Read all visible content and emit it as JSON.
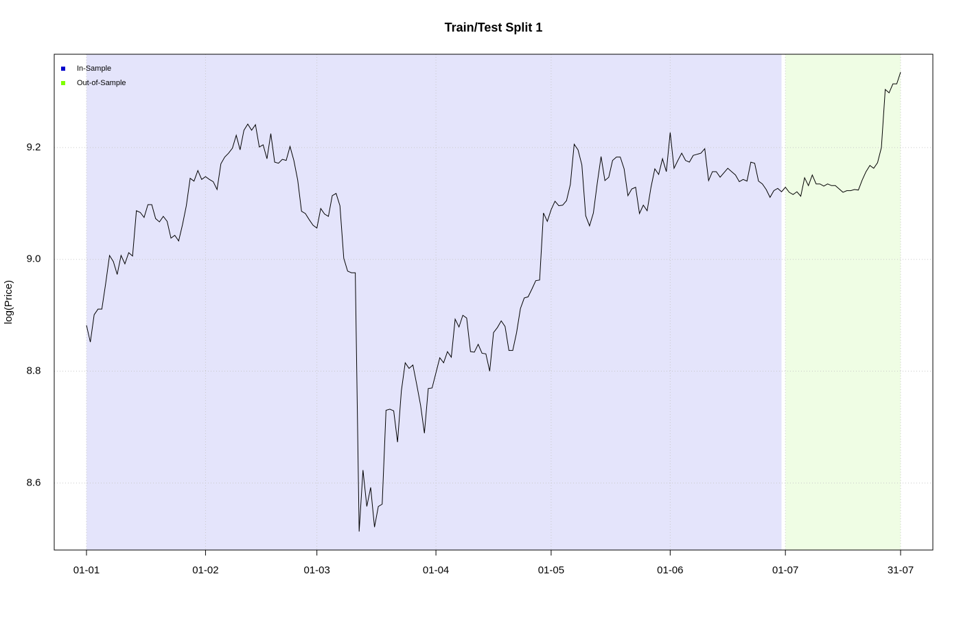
{
  "chart_data": {
    "type": "line",
    "title": "Train/Test Split 1",
    "y_label": "log(Price)",
    "xlim": [
      -8.4,
      220.4
    ],
    "ylim": [
      8.48,
      9.367
    ],
    "xticks": [
      {
        "value": 0,
        "label": "01-01"
      },
      {
        "value": 31,
        "label": "01-02"
      },
      {
        "value": 60,
        "label": "01-03"
      },
      {
        "value": 91,
        "label": "01-04"
      },
      {
        "value": 121,
        "label": "01-05"
      },
      {
        "value": 152,
        "label": "01-06"
      },
      {
        "value": 182,
        "label": "01-07"
      },
      {
        "value": 212,
        "label": "31-07"
      }
    ],
    "yticks": [
      8.6,
      8.8,
      {
        "value": 9,
        "label": "9.0"
      },
      9.2
    ],
    "grid": true,
    "legend": "top-left",
    "regions": [
      {
        "name": "In-Sample",
        "color": "#0000cc",
        "fill": "#e4e4fb",
        "range": [
          0,
          181
        ]
      },
      {
        "name": "Out-of-Sample",
        "color": "#7fff00",
        "fill": "#effde4",
        "range": [
          182,
          212
        ]
      }
    ],
    "x": [
      0,
      1,
      2,
      3,
      4,
      5,
      6,
      7,
      8,
      9,
      10,
      11,
      12,
      13,
      14,
      15,
      16,
      17,
      18,
      19,
      20,
      21,
      22,
      23,
      24,
      25,
      26,
      27,
      28,
      29,
      30,
      31,
      32,
      33,
      34,
      35,
      36,
      37,
      38,
      39,
      40,
      41,
      42,
      43,
      44,
      45,
      46,
      47,
      48,
      49,
      50,
      51,
      52,
      53,
      54,
      55,
      56,
      57,
      58,
      59,
      60,
      61,
      62,
      63,
      64,
      65,
      66,
      67,
      68,
      69,
      70,
      71,
      72,
      73,
      74,
      75,
      76,
      77,
      78,
      79,
      80,
      81,
      82,
      83,
      84,
      85,
      86,
      87,
      88,
      89,
      90,
      91,
      92,
      93,
      94,
      95,
      96,
      97,
      98,
      99,
      100,
      101,
      102,
      103,
      104,
      105,
      106,
      107,
      108,
      109,
      110,
      111,
      112,
      113,
      114,
      115,
      116,
      117,
      118,
      119,
      120,
      121,
      122,
      123,
      124,
      125,
      126,
      127,
      128,
      129,
      130,
      131,
      132,
      133,
      134,
      135,
      136,
      137,
      138,
      139,
      140,
      141,
      142,
      143,
      144,
      145,
      146,
      147,
      148,
      149,
      150,
      151,
      152,
      153,
      154,
      155,
      156,
      157,
      158,
      159,
      160,
      161,
      162,
      163,
      164,
      165,
      166,
      167,
      168,
      169,
      170,
      171,
      172,
      173,
      174,
      175,
      176,
      177,
      178,
      179,
      180,
      181,
      182,
      183,
      184,
      185,
      186,
      187,
      188,
      189,
      190,
      191,
      192,
      193,
      194,
      195,
      196,
      197,
      198,
      199,
      200,
      201,
      202,
      203,
      204,
      205,
      206,
      207,
      208,
      209,
      210,
      211,
      212
    ],
    "series": [
      {
        "color": "#000000",
        "values": [
          8.882,
          8.852,
          8.901,
          8.911,
          8.911,
          8.957,
          9.007,
          8.996,
          8.973,
          9.007,
          8.992,
          9.012,
          9.006,
          9.087,
          9.084,
          9.075,
          9.098,
          9.098,
          9.073,
          9.067,
          9.077,
          9.068,
          9.038,
          9.043,
          9.033,
          9.062,
          9.096,
          9.145,
          9.14,
          9.159,
          9.143,
          9.148,
          9.143,
          9.139,
          9.125,
          9.171,
          9.183,
          9.19,
          9.199,
          9.222,
          9.196,
          9.231,
          9.242,
          9.231,
          9.241,
          9.201,
          9.205,
          9.18,
          9.225,
          9.174,
          9.172,
          9.179,
          9.177,
          9.202,
          9.177,
          9.142,
          9.086,
          9.082,
          9.071,
          9.061,
          9.056,
          9.091,
          9.081,
          9.077,
          9.114,
          9.118,
          9.096,
          9.002,
          8.979,
          8.976,
          8.976,
          8.513,
          8.623,
          8.558,
          8.592,
          8.521,
          8.558,
          8.562,
          8.73,
          8.732,
          8.729,
          8.673,
          8.765,
          8.815,
          8.805,
          8.811,
          8.776,
          8.739,
          8.689,
          8.769,
          8.77,
          8.797,
          8.824,
          8.815,
          8.835,
          8.825,
          8.893,
          8.879,
          8.9,
          8.895,
          8.835,
          8.834,
          8.848,
          8.832,
          8.831,
          8.8,
          8.869,
          8.878,
          8.89,
          8.88,
          8.837,
          8.837,
          8.869,
          8.912,
          8.931,
          8.933,
          8.947,
          8.962,
          8.963,
          9.083,
          9.068,
          9.089,
          9.104,
          9.096,
          9.097,
          9.105,
          9.134,
          9.206,
          9.196,
          9.169,
          9.078,
          9.06,
          9.083,
          9.136,
          9.184,
          9.141,
          9.147,
          9.177,
          9.183,
          9.183,
          9.162,
          9.114,
          9.126,
          9.129,
          9.082,
          9.097,
          9.087,
          9.129,
          9.162,
          9.152,
          9.18,
          9.157,
          9.227,
          9.163,
          9.177,
          9.19,
          9.177,
          9.174,
          9.186,
          9.188,
          9.19,
          9.198,
          9.141,
          9.157,
          9.157,
          9.147,
          9.155,
          9.163,
          9.157,
          9.151,
          9.139,
          9.143,
          9.14,
          9.174,
          9.172,
          9.14,
          9.135,
          9.125,
          9.111,
          9.123,
          9.127,
          9.121,
          9.129,
          9.12,
          9.116,
          9.121,
          9.113,
          9.146,
          9.132,
          9.151,
          9.135,
          9.135,
          9.131,
          9.135,
          9.132,
          9.132,
          9.126,
          9.12,
          9.123,
          9.123,
          9.125,
          9.124,
          9.142,
          9.157,
          9.168,
          9.163,
          9.173,
          9.2,
          9.304,
          9.298,
          9.314,
          9.314,
          9.335
        ]
      }
    ]
  }
}
